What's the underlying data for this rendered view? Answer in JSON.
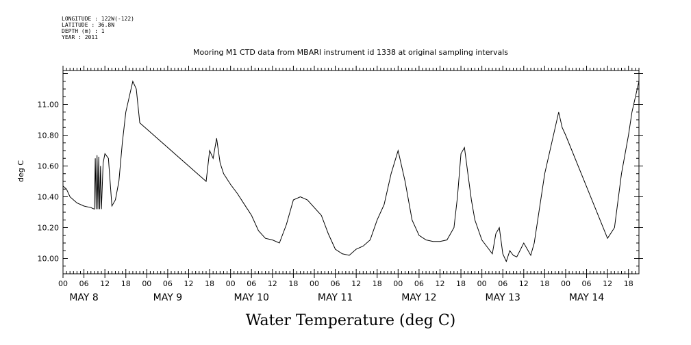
{
  "header": {
    "meta_lines": [
      "LONGITUDE : 122W(-122)",
      "LATITUDE : 36.8N",
      "DEPTH (m) : 1",
      "YEAR : 2011"
    ],
    "title": "Mooring M1 CTD data from MBARI instrument id 1338 at original sampling intervals"
  },
  "chart_data": {
    "type": "line",
    "title": "Mooring M1 CTD data from MBARI instrument id 1338 at original sampling intervals",
    "xlabel": "Water Temperature (deg C)",
    "ylabel": "deg C",
    "xlim": [
      "2011-05-08T00:00",
      "2011-05-14T21:00"
    ],
    "ylim": [
      9.9,
      11.22
    ],
    "y_ticks": [
      "10.00",
      "10.20",
      "10.40",
      "10.60",
      "10.80",
      "11.00"
    ],
    "x_hour_ticks": [
      "00",
      "06",
      "12",
      "18",
      "00",
      "06",
      "12",
      "18",
      "00",
      "06",
      "12",
      "18",
      "00",
      "06",
      "12",
      "18",
      "00",
      "06",
      "12",
      "18",
      "00",
      "06",
      "12",
      "18",
      "00",
      "06",
      "12",
      "18"
    ],
    "x_day_labels": [
      "MAY  8",
      "MAY  9",
      "MAY 10",
      "MAY 11",
      "MAY 12",
      "MAY 13",
      "MAY 14"
    ],
    "grid": false,
    "series": [
      {
        "name": "",
        "color": "#000000",
        "x": [
          "2011-05-08T00:00",
          "2011-05-08T01:00",
          "2011-05-08T02:00",
          "2011-05-08T03:00",
          "2011-05-08T04:00",
          "2011-05-08T06:00",
          "2011-05-08T08:00",
          "2011-05-08T09:00",
          "2011-05-08T09:15",
          "2011-05-08T09:30",
          "2011-05-08T09:45",
          "2011-05-08T10:00",
          "2011-05-08T10:15",
          "2011-05-08T10:30",
          "2011-05-08T10:45",
          "2011-05-08T11:00",
          "2011-05-08T11:30",
          "2011-05-08T12:00",
          "2011-05-08T13:00",
          "2011-05-08T14:00",
          "2011-05-08T15:00",
          "2011-05-08T16:00",
          "2011-05-08T17:00",
          "2011-05-08T18:00",
          "2011-05-08T19:00",
          "2011-05-08T20:00",
          "2011-05-08T21:00",
          "2011-05-08T22:00",
          "2011-05-09T17:00",
          "2011-05-09T18:00",
          "2011-05-09T19:00",
          "2011-05-09T20:00",
          "2011-05-09T21:00",
          "2011-05-09T22:00",
          "2011-05-10T00:00",
          "2011-05-10T02:00",
          "2011-05-10T04:00",
          "2011-05-10T06:00",
          "2011-05-10T08:00",
          "2011-05-10T10:00",
          "2011-05-10T12:00",
          "2011-05-10T14:00",
          "2011-05-10T16:00",
          "2011-05-10T18:00",
          "2011-05-10T20:00",
          "2011-05-10T22:00",
          "2011-05-11T00:00",
          "2011-05-11T02:00",
          "2011-05-11T04:00",
          "2011-05-11T06:00",
          "2011-05-11T08:00",
          "2011-05-11T10:00",
          "2011-05-11T12:00",
          "2011-05-11T14:00",
          "2011-05-11T16:00",
          "2011-05-11T18:00",
          "2011-05-11T20:00",
          "2011-05-11T22:00",
          "2011-05-12T00:00",
          "2011-05-12T02:00",
          "2011-05-12T04:00",
          "2011-05-12T06:00",
          "2011-05-12T08:00",
          "2011-05-12T10:00",
          "2011-05-12T12:00",
          "2011-05-12T14:00",
          "2011-05-12T16:00",
          "2011-05-12T17:00",
          "2011-05-12T18:00",
          "2011-05-12T19:00",
          "2011-05-12T20:00",
          "2011-05-12T21:00",
          "2011-05-12T22:00",
          "2011-05-13T00:00",
          "2011-05-13T02:00",
          "2011-05-13T03:00",
          "2011-05-13T04:00",
          "2011-05-13T05:00",
          "2011-05-13T06:00",
          "2011-05-13T07:00",
          "2011-05-13T08:00",
          "2011-05-13T09:00",
          "2011-05-13T10:00",
          "2011-05-13T12:00",
          "2011-05-13T14:00",
          "2011-05-13T15:00",
          "2011-05-13T16:00",
          "2011-05-13T18:00",
          "2011-05-13T20:00",
          "2011-05-13T22:00",
          "2011-05-13T23:00",
          "2011-05-14T00:00",
          "2011-05-14T12:00",
          "2011-05-14T14:00",
          "2011-05-14T16:00",
          "2011-05-14T18:00",
          "2011-05-14T19:00",
          "2011-05-14T20:00",
          "2011-05-14T21:00"
        ],
        "values": [
          10.47,
          10.45,
          10.4,
          10.38,
          10.36,
          10.34,
          10.33,
          10.32,
          10.65,
          10.32,
          10.67,
          10.32,
          10.66,
          10.32,
          10.6,
          10.32,
          10.62,
          10.68,
          10.65,
          10.34,
          10.38,
          10.5,
          10.75,
          10.95,
          11.05,
          11.15,
          11.1,
          10.88,
          10.5,
          10.7,
          10.65,
          10.78,
          10.62,
          10.55,
          10.48,
          10.42,
          10.35,
          10.28,
          10.18,
          10.13,
          10.12,
          10.1,
          10.22,
          10.38,
          10.4,
          10.38,
          10.33,
          10.28,
          10.16,
          10.06,
          10.03,
          10.02,
          10.06,
          10.08,
          10.12,
          10.25,
          10.35,
          10.55,
          10.7,
          10.5,
          10.25,
          10.15,
          10.12,
          10.11,
          10.11,
          10.12,
          10.2,
          10.4,
          10.68,
          10.72,
          10.55,
          10.38,
          10.25,
          10.12,
          10.06,
          10.03,
          10.16,
          10.2,
          10.03,
          9.98,
          10.05,
          10.02,
          10.01,
          10.1,
          10.02,
          10.1,
          10.25,
          10.55,
          10.75,
          10.95,
          10.85,
          10.8,
          10.13,
          10.2,
          10.55,
          10.8,
          10.95,
          11.05,
          11.15
        ]
      }
    ]
  }
}
